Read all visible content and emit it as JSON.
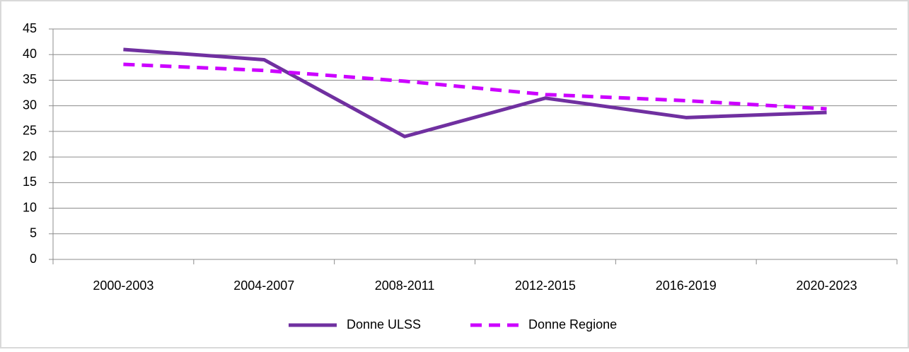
{
  "chart_data": {
    "type": "line",
    "categories": [
      "2000-2003",
      "2004-2007",
      "2008-2011",
      "2012-2015",
      "2016-2019",
      "2020-2023"
    ],
    "series": [
      {
        "name": "Donne ULSS",
        "color": "#7030a0",
        "line_style": "solid",
        "values": [
          41,
          39,
          24,
          31.5,
          27.7,
          28.7
        ]
      },
      {
        "name": "Donne Regione",
        "color": "#cc00ff",
        "line_style": "dashed",
        "values": [
          38.1,
          36.9,
          34.8,
          32.2,
          31,
          29.4
        ]
      }
    ],
    "ylim": [
      0,
      45
    ],
    "yticks": [
      0,
      5,
      10,
      15,
      20,
      25,
      30,
      35,
      40,
      45
    ],
    "grid": true,
    "legend": "bottom"
  }
}
